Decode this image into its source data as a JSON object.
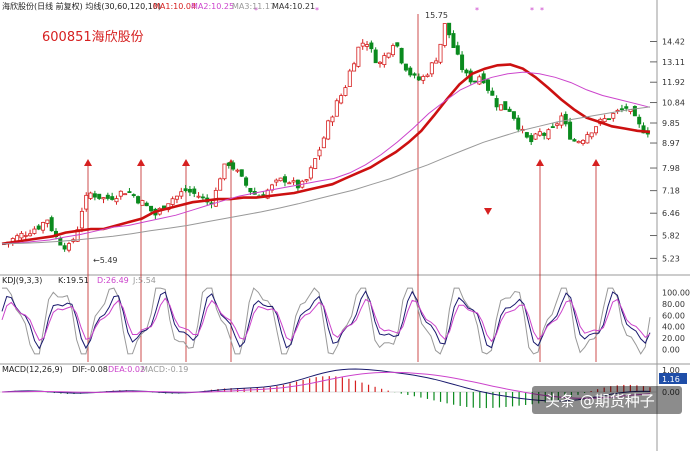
{
  "header": {
    "main_title": "海欣股份(日线 前复权) 均线(30,60,120,10)",
    "ma1": "MA1:10.04",
    "ma2": "MA2:10.25",
    "ma3": "MA3:11.17",
    "ma4": "MA4:10.21"
  },
  "stock_label": "600851海欣股份",
  "annotations": {
    "peak": "15.75",
    "low": "←5.49"
  },
  "kdj": {
    "title": "KDJ(9,3,3)",
    "k": "K:19.51",
    "d": "D:26.49",
    "j": "J:5.54"
  },
  "macd": {
    "title": "MACD(12,26,9)",
    "dif": "DIF:-0.08",
    "dea": "DEA:0.02",
    "macd": "MACD:-0.19",
    "badge": "1.16"
  },
  "watermark": "头条 @期货种子",
  "colors": {
    "up": "#d62020",
    "down": "#0a8a1e",
    "ma_thick": "#cc1010",
    "ma_pink": "#cc44cc",
    "ma_gray": "#999999"
  },
  "chart_data": [
    {
      "type": "candlestick",
      "title": "600851海欣股份",
      "y_ticks": [
        "14.42",
        "13.11",
        "11.92",
        "10.84",
        "9.85",
        "8.97",
        "7.98",
        "7.18",
        "6.46",
        "5.82",
        "5.23"
      ],
      "ylim": [
        5.0,
        16.4
      ],
      "scale": "log",
      "close_path": [
        5.6,
        5.7,
        5.8,
        5.9,
        6.0,
        6.1,
        6.3,
        5.8,
        5.6,
        5.5,
        5.9,
        6.8,
        7.1,
        7.0,
        6.9,
        7.0,
        7.1,
        7.2,
        7.0,
        6.8,
        6.6,
        6.4,
        6.7,
        6.9,
        7.0,
        7.2,
        7.1,
        7.0,
        6.8,
        6.9,
        7.8,
        8.2,
        7.9,
        7.5,
        7.2,
        7.0,
        7.1,
        7.3,
        7.5,
        7.6,
        7.4,
        7.3,
        7.6,
        8.3,
        9.0,
        10.0,
        10.8,
        11.5,
        12.8,
        14.0,
        14.6,
        13.5,
        13.0,
        13.8,
        14.6,
        13.2,
        12.5,
        12.0,
        12.2,
        12.8,
        13.6,
        15.7,
        14.2,
        13.0,
        12.2,
        12.0,
        12.4,
        11.5,
        10.8,
        10.6,
        10.5,
        9.8,
        9.2,
        9.0,
        9.4,
        9.3,
        9.6,
        10.2,
        9.4,
        9.0,
        9.2,
        9.5,
        9.8,
        10.0,
        10.2,
        10.4,
        10.6,
        10.1,
        9.6,
        9.5
      ],
      "ma_series": [
        {
          "name": "MA1",
          "values": [
            5.6,
            5.65,
            5.7,
            5.75,
            5.8,
            5.9,
            5.95,
            6.0,
            6.0,
            6.1,
            6.2,
            6.3,
            6.5,
            6.6,
            6.7,
            6.8,
            6.85,
            6.9,
            6.9,
            6.95,
            6.95,
            7.0,
            7.05,
            7.1,
            7.2,
            7.3,
            7.4,
            7.6,
            7.8,
            8.0,
            8.3,
            8.6,
            9.0,
            9.5,
            10.2,
            11.0,
            11.8,
            12.4,
            12.7,
            12.9,
            12.95,
            12.7,
            12.2,
            11.6,
            11.0,
            10.5,
            10.1,
            9.9,
            9.7,
            9.6,
            9.5,
            9.45
          ]
        },
        {
          "name": "MA3",
          "values": [
            5.6,
            5.62,
            5.66,
            5.7,
            5.78,
            5.85,
            5.95,
            6.05,
            6.1,
            6.2,
            6.3,
            6.4,
            6.55,
            6.7,
            6.85,
            7.0,
            7.1,
            7.2,
            7.3,
            7.4,
            7.5,
            7.6,
            7.8,
            8.1,
            8.5,
            9.0,
            9.6,
            10.3,
            10.9,
            11.5,
            11.9,
            12.2,
            12.4,
            12.5,
            12.4,
            12.2,
            11.9,
            11.5,
            11.2,
            11.0,
            10.8,
            10.6
          ]
        },
        {
          "name": "MA2",
          "values": [
            5.6,
            5.61,
            5.63,
            5.66,
            5.7,
            5.75,
            5.8,
            5.87,
            5.95,
            6.02,
            6.1,
            6.2,
            6.3,
            6.4,
            6.5,
            6.62,
            6.75,
            6.9,
            7.05,
            7.2,
            7.4,
            7.6,
            7.85,
            8.1,
            8.4,
            8.7,
            9.0,
            9.25,
            9.5,
            9.7,
            9.9,
            10.05,
            10.2,
            10.35,
            10.5,
            10.62
          ]
        }
      ]
    },
    {
      "type": "line",
      "title": "KDJ(9,3,3)",
      "y_ticks": [
        "100.00",
        "80.00",
        "60.00",
        "40.00",
        "20.00",
        "0.00"
      ],
      "ylim": [
        -10,
        110
      ]
    },
    {
      "type": "bar",
      "title": "MACD(12,26,9)",
      "y_ticks": [
        "1.00",
        "0.00"
      ]
    }
  ]
}
